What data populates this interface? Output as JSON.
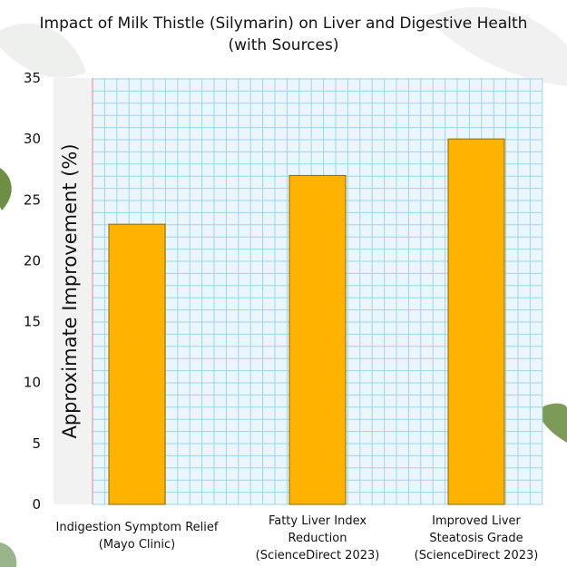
{
  "chart_data": {
    "type": "bar",
    "title": "Impact of Milk Thistle (Silymarin) on Liver and Digestive Health (with Sources)",
    "title_lines": [
      "Impact of Milk Thistle (Silymarin) on Liver and Digestive Health",
      "(with Sources)"
    ],
    "xlabel": "",
    "ylabel": "Approximate Improvement (%)",
    "categories": [
      "Indigestion Symptom Relief (Mayo Clinic)",
      "Fatty Liver Index Reduction (ScienceDirect 2023)",
      "Improved Liver Steatosis Grade (ScienceDirect 2023)"
    ],
    "category_lines": [
      [
        "Indigestion Symptom Relief",
        "(Mayo Clinic)"
      ],
      [
        "Fatty Liver Index",
        "Reduction",
        "(ScienceDirect 2023)"
      ],
      [
        "Improved Liver",
        "Steatosis Grade",
        "(ScienceDirect 2023)"
      ]
    ],
    "values": [
      23,
      27,
      30
    ],
    "ylim": [
      0,
      35
    ],
    "yticks": [
      0,
      5,
      10,
      15,
      20,
      25,
      30,
      35
    ],
    "grid": true,
    "legend": "none",
    "colors": {
      "bar": "#FFB300",
      "grid": "#9ad7ea",
      "plot_background": "#eaf6fb",
      "left_strip": "#f2f2f2",
      "left_line": "#e08a8a"
    }
  }
}
